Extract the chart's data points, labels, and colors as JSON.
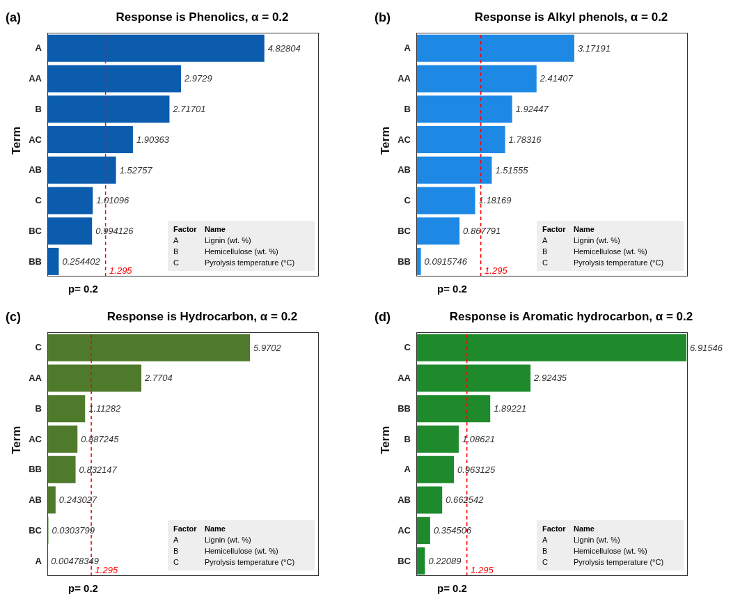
{
  "chart_data": [
    {
      "type": "bar",
      "orientation": "horizontal",
      "title": "Response is Phenolics, α = 0.2",
      "ylabel": "Term",
      "categories": [
        "A",
        "AA",
        "B",
        "AC",
        "AB",
        "C",
        "BC",
        "BB"
      ],
      "values": [
        4.82804,
        2.9729,
        2.71701,
        1.90363,
        1.52757,
        1.01096,
        0.994126,
        0.254402
      ],
      "color": "#0b5cad",
      "xlim": [
        0,
        6.04
      ],
      "data_labels": true,
      "tick_labels": "y",
      "ref_lines": [
        {
          "axis": "x",
          "value": 1.295,
          "label": "1.295",
          "color": "#ff0000",
          "line_style": "dashed"
        }
      ],
      "annotations": [
        "(a)",
        "p= 0.2",
        "Factor",
        "Name",
        "A",
        "Lignin (wt. %)",
        "B",
        "Hemicellulose (wt. %)",
        "C",
        "Pyrolysis temperature (°C)"
      ]
    },
    {
      "type": "bar",
      "orientation": "horizontal",
      "title": "Response is Alkyl phenols, α = 0.2",
      "ylabel": "Term",
      "categories": [
        "A",
        "AA",
        "B",
        "AC",
        "AB",
        "C",
        "BC",
        "BB"
      ],
      "values": [
        3.17191,
        2.41407,
        1.92447,
        1.78316,
        1.51555,
        1.18169,
        0.867791,
        0.0915746
      ],
      "color": "#1e88e5",
      "xlim": [
        0,
        5.45
      ],
      "data_labels": true,
      "tick_labels": "y",
      "ref_lines": [
        {
          "axis": "x",
          "value": 1.295,
          "label": "1.295",
          "color": "#ff0000",
          "line_style": "dashed"
        }
      ],
      "annotations": [
        "(b)",
        "p= 0.2",
        "Factor",
        "Name",
        "A",
        "Lignin (wt. %)",
        "B",
        "Hemicellulose (wt. %)",
        "C",
        "Pyrolysis temperature (°C)"
      ]
    },
    {
      "type": "bar",
      "orientation": "horizontal",
      "title": "Response is Hydrocarbon, α = 0.2",
      "ylabel": "Term",
      "categories": [
        "C",
        "AA",
        "B",
        "AC",
        "BB",
        "AB",
        "BC",
        "A"
      ],
      "values": [
        5.9702,
        2.7704,
        1.11282,
        0.887245,
        0.832147,
        0.243027,
        0.0303799,
        0.00478349
      ],
      "color": "#4f7a2b",
      "xlim": [
        0,
        8.0
      ],
      "data_labels": true,
      "tick_labels": "y",
      "ref_lines": [
        {
          "axis": "x",
          "value": 1.295,
          "label": "1.295",
          "color": "#ff0000",
          "line_style": "dashed"
        }
      ],
      "annotations": [
        "(c)",
        "p= 0.2",
        "Factor",
        "Name",
        "A",
        "Lignin (wt. %)",
        "B",
        "Hemicellulose (wt. %)",
        "C",
        "Pyrolysis temperature (°C)"
      ]
    },
    {
      "type": "bar",
      "orientation": "horizontal",
      "title": "Response is Aromatic hydrocarbon, α = 0.2",
      "ylabel": "Term",
      "categories": [
        "C",
        "AA",
        "BB",
        "B",
        "A",
        "AB",
        "AC",
        "BC"
      ],
      "values": [
        6.91546,
        2.92435,
        1.89221,
        1.08621,
        0.963125,
        0.662542,
        0.354506,
        0.22089
      ],
      "color": "#1e8a2c",
      "xlim": [
        0,
        6.95
      ],
      "data_labels": true,
      "tick_labels": "y",
      "ref_lines": [
        {
          "axis": "x",
          "value": 1.295,
          "label": "1.295",
          "color": "#ff0000",
          "line_style": "dashed"
        }
      ],
      "annotations": [
        "(d)",
        "p= 0.2",
        "Factor",
        "Name",
        "A",
        "Lignin (wt. %)",
        "B",
        "Hemicellulose (wt. %)",
        "C",
        "Pyrolysis temperature (°C)"
      ]
    }
  ]
}
